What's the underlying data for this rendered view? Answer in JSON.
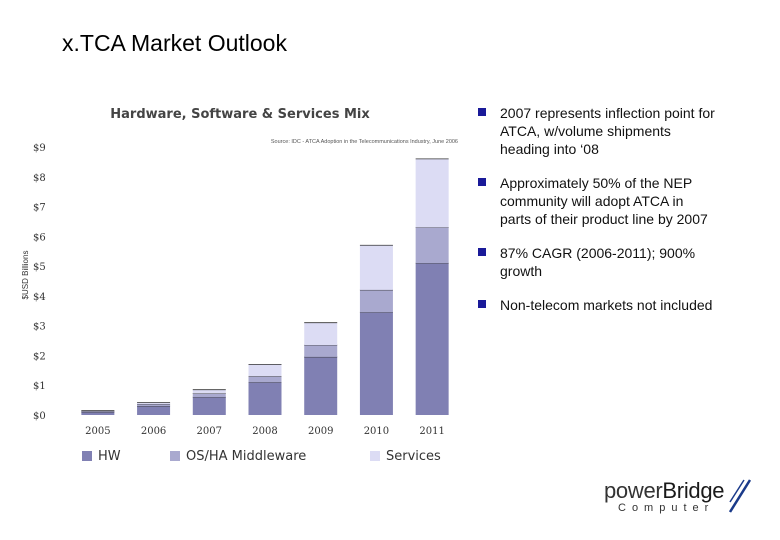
{
  "slide": {
    "title": "x.TCA Market Outlook"
  },
  "bullets": [
    "2007 represents inflection point for ATCA, w/volume shipments heading into ‘08",
    "Approximately 50% of the NEP community will adopt ATCA in parts of their product line by 2007",
    "87% CAGR (2006-2011); 900% growth",
    "Non-telecom markets not included"
  ],
  "logo": {
    "word_part1": "power",
    "word_part2": "Bridge",
    "sub": "Computer"
  },
  "colors": {
    "bullet": "#1a1a99",
    "hw": "#8080b3",
    "middleware": "#a9a9cf",
    "services": "#dcdcf4"
  },
  "chart_data": {
    "type": "bar",
    "stacked": true,
    "title": "Hardware, Software & Services Mix",
    "source_note": "Source: IDC - ATCA Adoption in the Telecommunications Industry, June 2006",
    "ylabel": "$USD Billions",
    "ylim": [
      0,
      9
    ],
    "yticks": [
      "$0",
      "$1",
      "$2",
      "$3",
      "$4",
      "$5",
      "$6",
      "$7",
      "$8",
      "$9"
    ],
    "categories": [
      "2005",
      "2006",
      "2007",
      "2008",
      "2009",
      "2010",
      "2011"
    ],
    "series": [
      {
        "name": "HW",
        "color": "#8080b3",
        "values": [
          0.1,
          0.3,
          0.6,
          1.1,
          1.95,
          3.45,
          5.1
        ]
      },
      {
        "name": "OS/HA Middleware",
        "color": "#a9a9cf",
        "values": [
          0.03,
          0.07,
          0.12,
          0.2,
          0.4,
          0.75,
          1.2
        ]
      },
      {
        "name": "Services",
        "color": "#dcdcf4",
        "values": [
          0.02,
          0.05,
          0.13,
          0.4,
          0.75,
          1.5,
          2.3
        ]
      }
    ],
    "legend_position": "bottom",
    "grid": false
  }
}
